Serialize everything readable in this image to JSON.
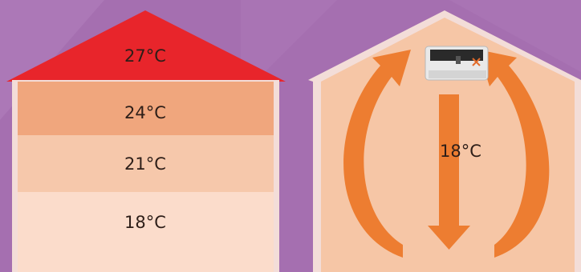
{
  "left_house": {
    "zones": [
      {
        "label": "27°C",
        "color": "#e8252b"
      },
      {
        "label": "24°C",
        "color": "#f0a67d"
      },
      {
        "label": "21°C",
        "color": "#f6c8ab"
      },
      {
        "label": "18°C",
        "color": "#fbdccb"
      }
    ]
  },
  "right_house": {
    "label": "18°C",
    "wall_color": "#f6c6a6",
    "arrow_color": "#ed7d31",
    "device": "ceiling-heater-icon"
  },
  "colors": {
    "background": "#a56fb0",
    "background_accent": "#b482c0",
    "frame_light": "#f3ddd8"
  }
}
